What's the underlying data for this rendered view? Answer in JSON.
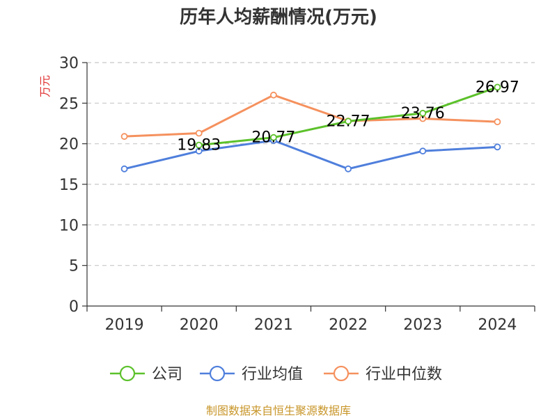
{
  "colors": {
    "company": "#5cc12b",
    "industry_avg": "#4f7fdc",
    "industry_median": "#f5915e",
    "grid": "#c8c8c8",
    "axis": "#333333",
    "ylabel": "#e03030",
    "source": "#c8962a"
  },
  "source_note": "制图数据来自恒生聚源数据库",
  "chart_data": {
    "type": "line",
    "title": "历年人均薪酬情况(万元)",
    "ylabel": "万元",
    "xlabel": "",
    "categories": [
      "2019",
      "2020",
      "2021",
      "2022",
      "2023",
      "2024"
    ],
    "ylim": [
      0,
      30
    ],
    "yticks": [
      0,
      5,
      10,
      15,
      20,
      25,
      30
    ],
    "grid": true,
    "legend_position": "bottom",
    "series": [
      {
        "name": "公司",
        "color_key": "company",
        "values": [
          null,
          19.83,
          20.77,
          22.77,
          23.76,
          26.97
        ],
        "labels": [
          "",
          "19.83",
          "20.77",
          "22.77",
          "23.76",
          "26.97"
        ]
      },
      {
        "name": "行业均值",
        "color_key": "industry_avg",
        "values": [
          16.9,
          19.1,
          20.4,
          16.9,
          19.1,
          19.6
        ]
      },
      {
        "name": "行业中位数",
        "color_key": "industry_median",
        "values": [
          20.9,
          21.3,
          26.0,
          22.8,
          23.1,
          22.7
        ]
      }
    ]
  }
}
